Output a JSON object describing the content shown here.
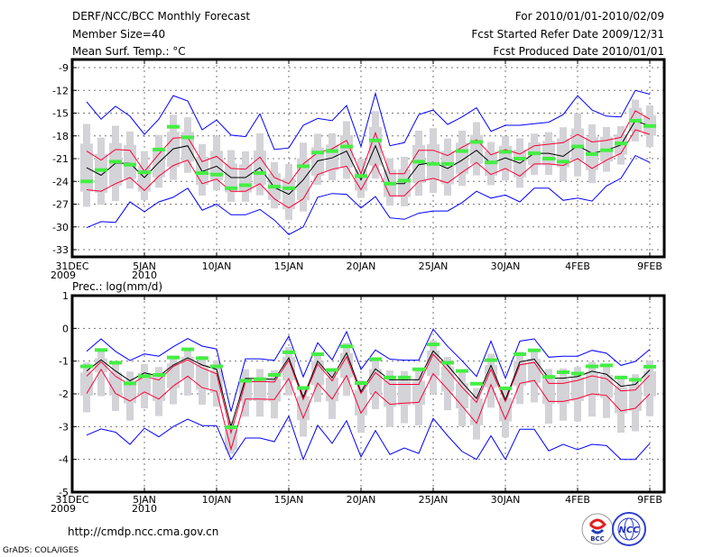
{
  "header": {
    "title": "DERF/NCC/BCC Monthly Forecast",
    "member_size": "Member Size=40",
    "variable1": "Mean Surf. Temp.: °C",
    "period": "For 2010/01/01-2010/02/09",
    "start_date": "Fcst Started Refer Date 2009/12/31",
    "produced_date": "Fcst Produced Date 2010/01/01"
  },
  "footer": {
    "url": "http://cmdp.ncc.cma.gov.cn",
    "grads": "GrADS: COLA/IGES",
    "logo1": "BCC",
    "logo2": "NCC"
  },
  "colors": {
    "max_min": "#0000ff",
    "sd": "#ff0033",
    "mean": "#000000",
    "marker": "#44ee44",
    "box": "#d3d3d8"
  },
  "chart_data": [
    {
      "type": "line",
      "title": "Mean Surf. Temp.: °C",
      "xlabel": "",
      "ylabel": "",
      "x_ticks": [
        "31DEC",
        "5JAN",
        "10JAN",
        "15JAN",
        "20JAN",
        "25JAN",
        "30JAN",
        "4FEB",
        "9FEB"
      ],
      "x_year_labels": [
        "2009",
        "2010"
      ],
      "y_ticks": [
        "-9",
        "-12",
        "-15",
        "-18",
        "-21",
        "-24",
        "-27",
        "-30",
        "-33"
      ],
      "ylim": [
        -34,
        -8
      ],
      "grid": true,
      "days": 40,
      "series": [
        {
          "name": "max",
          "values": [
            -13.5,
            -15.8,
            -14.1,
            -15.4,
            -17.8,
            -15.8,
            -12.7,
            -13.4,
            -17.2,
            -15.9,
            -17.9,
            -18.1,
            -15.1,
            -19.8,
            -19.6,
            -16.6,
            -15.7,
            -16.0,
            -14.0,
            -19.4,
            -12.4,
            -19.3,
            -18.9,
            -15.2,
            -14.6,
            -16.5,
            -15.5,
            -14.3,
            -17.4,
            -16.6,
            -16.6,
            -16.4,
            -16.2,
            -15.2,
            -12.7,
            -14.6,
            -15.4,
            -15.5,
            -12.0,
            -12.5
          ]
        },
        {
          "name": "mean_plus_sd",
          "values": [
            -20.0,
            -21.2,
            -19.8,
            -19.9,
            -22.7,
            -20.4,
            -18.3,
            -18.2,
            -21.4,
            -20.7,
            -22.3,
            -22.4,
            -20.8,
            -23.5,
            -24.3,
            -21.7,
            -20.2,
            -19.7,
            -18.6,
            -23.0,
            -17.6,
            -23.0,
            -23.0,
            -19.9,
            -19.9,
            -20.6,
            -19.5,
            -18.5,
            -20.5,
            -19.8,
            -20.4,
            -19.3,
            -19.1,
            -18.9,
            -17.8,
            -18.8,
            -18.6,
            -18.2,
            -14.7,
            -15.8
          ]
        },
        {
          "name": "mean",
          "values": [
            -22.2,
            -23.2,
            -21.6,
            -21.6,
            -23.5,
            -21.5,
            -19.7,
            -19.3,
            -22.7,
            -22.0,
            -23.5,
            -23.5,
            -22.2,
            -24.8,
            -25.7,
            -23.8,
            -21.3,
            -20.9,
            -20.0,
            -23.8,
            -19.3,
            -24.3,
            -24.3,
            -21.8,
            -21.5,
            -22.3,
            -21.2,
            -19.9,
            -21.6,
            -20.9,
            -21.6,
            -20.3,
            -20.3,
            -20.7,
            -19.3,
            -20.3,
            -19.9,
            -19.2,
            -16.0,
            -16.7
          ]
        },
        {
          "name": "mean_minus_sd",
          "values": [
            -25.1,
            -25.3,
            -24.3,
            -23.5,
            -25.2,
            -23.3,
            -21.9,
            -21.2,
            -24.3,
            -23.7,
            -25.3,
            -25.3,
            -24.3,
            -26.3,
            -27.5,
            -26.3,
            -23.1,
            -22.4,
            -22.0,
            -25.1,
            -21.7,
            -25.9,
            -25.9,
            -24.0,
            -23.6,
            -24.2,
            -22.8,
            -21.5,
            -23.1,
            -22.3,
            -23.3,
            -21.7,
            -21.7,
            -21.9,
            -21.0,
            -22.3,
            -21.2,
            -20.3,
            -17.2,
            -17.8
          ]
        },
        {
          "name": "min",
          "values": [
            -30.1,
            -29.3,
            -29.4,
            -26.7,
            -28.0,
            -26.7,
            -26.1,
            -24.9,
            -27.8,
            -27.0,
            -28.4,
            -28.4,
            -27.7,
            -29.1,
            -31.0,
            -30.0,
            -26.1,
            -25.6,
            -25.7,
            -27.5,
            -26.0,
            -28.8,
            -29.0,
            -28.2,
            -27.9,
            -27.9,
            -26.8,
            -25.3,
            -26.2,
            -25.8,
            -26.7,
            -24.9,
            -24.9,
            -26.5,
            -26.2,
            -26.6,
            -24.6,
            -23.6,
            -20.6,
            -21.5
          ]
        },
        {
          "name": "marker",
          "values": [
            -24.0,
            -22.5,
            -21.4,
            -21.8,
            -22.8,
            -19.8,
            -16.8,
            -18.2,
            -22.9,
            -23.1,
            -24.9,
            -24.5,
            -22.9,
            -24.7,
            -24.9,
            -22.0,
            -20.2,
            -20.0,
            -19.4,
            -23.3,
            -18.6,
            -24.3,
            -23.9,
            -21.4,
            -21.7,
            -21.7,
            -20.0,
            -18.8,
            -21.5,
            -20.1,
            -21.0,
            -20.3,
            -21.0,
            -21.4,
            -19.4,
            -20.4,
            -19.9,
            -19.0,
            -16.0,
            -16.7
          ]
        }
      ]
    },
    {
      "type": "line",
      "title": "Prec.: log(mm/d)",
      "xlabel": "",
      "ylabel": "",
      "x_ticks": [
        "31DEC",
        "5JAN",
        "10JAN",
        "15JAN",
        "20JAN",
        "25JAN",
        "30JAN",
        "4FEB",
        "9FEB"
      ],
      "x_year_labels": [
        "2009",
        "2010"
      ],
      "y_ticks": [
        "1",
        "0",
        "-1",
        "-2",
        "-3",
        "-4",
        "-5"
      ],
      "ylim": [
        -5,
        1
      ],
      "grid": true,
      "days": 40,
      "series": [
        {
          "name": "max",
          "values": [
            -0.7,
            -0.32,
            -0.7,
            -0.98,
            -0.78,
            -0.85,
            -0.56,
            -0.31,
            -0.54,
            -0.63,
            -2.54,
            -0.93,
            -0.93,
            -0.98,
            -0.24,
            -1.48,
            -0.44,
            -0.96,
            -0.1,
            -1.25,
            -0.66,
            -0.94,
            -0.97,
            -0.97,
            -0.03,
            -0.55,
            -0.99,
            -1.47,
            -0.39,
            -1.52,
            -0.39,
            -0.32,
            -0.88,
            -0.85,
            -0.85,
            -0.67,
            -0.76,
            -1.13,
            -1.01,
            -0.64
          ]
        },
        {
          "name": "mean_plus_sd",
          "values": [
            -1.46,
            -1.02,
            -1.46,
            -1.73,
            -1.46,
            -1.58,
            -1.16,
            -0.96,
            -1.21,
            -1.39,
            -3.19,
            -1.64,
            -1.62,
            -1.64,
            -0.98,
            -2.17,
            -1.09,
            -1.6,
            -0.87,
            -1.99,
            -1.35,
            -1.71,
            -1.71,
            -1.71,
            -0.79,
            -1.27,
            -1.8,
            -2.26,
            -1.25,
            -2.23,
            -1.11,
            -1.04,
            -1.68,
            -1.68,
            -1.59,
            -1.45,
            -1.54,
            -1.91,
            -1.88,
            -1.43
          ]
        },
        {
          "name": "mean",
          "values": [
            -1.3,
            -0.96,
            -1.3,
            -1.6,
            -1.36,
            -1.46,
            -1.12,
            -0.9,
            -1.12,
            -1.25,
            -3.0,
            -1.53,
            -1.53,
            -1.56,
            -0.9,
            -2.1,
            -1.0,
            -1.51,
            -0.75,
            -1.93,
            -1.24,
            -1.57,
            -1.57,
            -1.57,
            -0.69,
            -1.13,
            -1.65,
            -2.14,
            -1.13,
            -2.18,
            -1.02,
            -0.94,
            -1.52,
            -1.52,
            -1.47,
            -1.31,
            -1.4,
            -1.77,
            -1.71,
            -1.27
          ]
        },
        {
          "name": "mean_minus_sd",
          "values": [
            -1.99,
            -1.25,
            -1.99,
            -2.22,
            -1.94,
            -2.16,
            -1.76,
            -1.46,
            -1.81,
            -1.92,
            -3.69,
            -2.16,
            -2.16,
            -2.17,
            -1.53,
            -2.74,
            -1.67,
            -2.16,
            -1.44,
            -2.59,
            -1.93,
            -2.32,
            -2.28,
            -2.26,
            -1.38,
            -1.86,
            -2.37,
            -2.9,
            -1.72,
            -2.78,
            -1.68,
            -1.59,
            -2.23,
            -2.23,
            -2.14,
            -2.0,
            -2.05,
            -2.52,
            -2.44,
            -2.0
          ]
        },
        {
          "name": "min",
          "values": [
            -3.26,
            -3.07,
            -3.17,
            -3.54,
            -3.05,
            -3.31,
            -3.0,
            -2.77,
            -2.97,
            -2.97,
            -4.0,
            -3.35,
            -3.35,
            -3.46,
            -2.68,
            -4.0,
            -2.96,
            -3.51,
            -2.82,
            -3.92,
            -3.12,
            -3.85,
            -3.65,
            -3.82,
            -2.75,
            -3.28,
            -3.76,
            -4.0,
            -3.28,
            -4.0,
            -3.08,
            -3.08,
            -3.74,
            -3.54,
            -3.7,
            -3.54,
            -3.58,
            -4.0,
            -4.0,
            -3.51
          ]
        },
        {
          "name": "marker",
          "values": [
            -1.16,
            -0.66,
            -1.05,
            -1.68,
            -1.46,
            -1.42,
            -0.89,
            -0.64,
            -0.91,
            -1.16,
            -3.02,
            -1.6,
            -1.55,
            -1.42,
            -0.73,
            -1.82,
            -0.79,
            -1.27,
            -0.55,
            -1.67,
            -0.94,
            -1.5,
            -1.5,
            -1.25,
            -0.49,
            -1.05,
            -1.3,
            -1.69,
            -0.97,
            -1.83,
            -0.79,
            -0.67,
            -1.48,
            -1.34,
            -1.38,
            -1.16,
            -1.13,
            -1.5,
            -1.57,
            -1.17
          ]
        }
      ]
    }
  ]
}
